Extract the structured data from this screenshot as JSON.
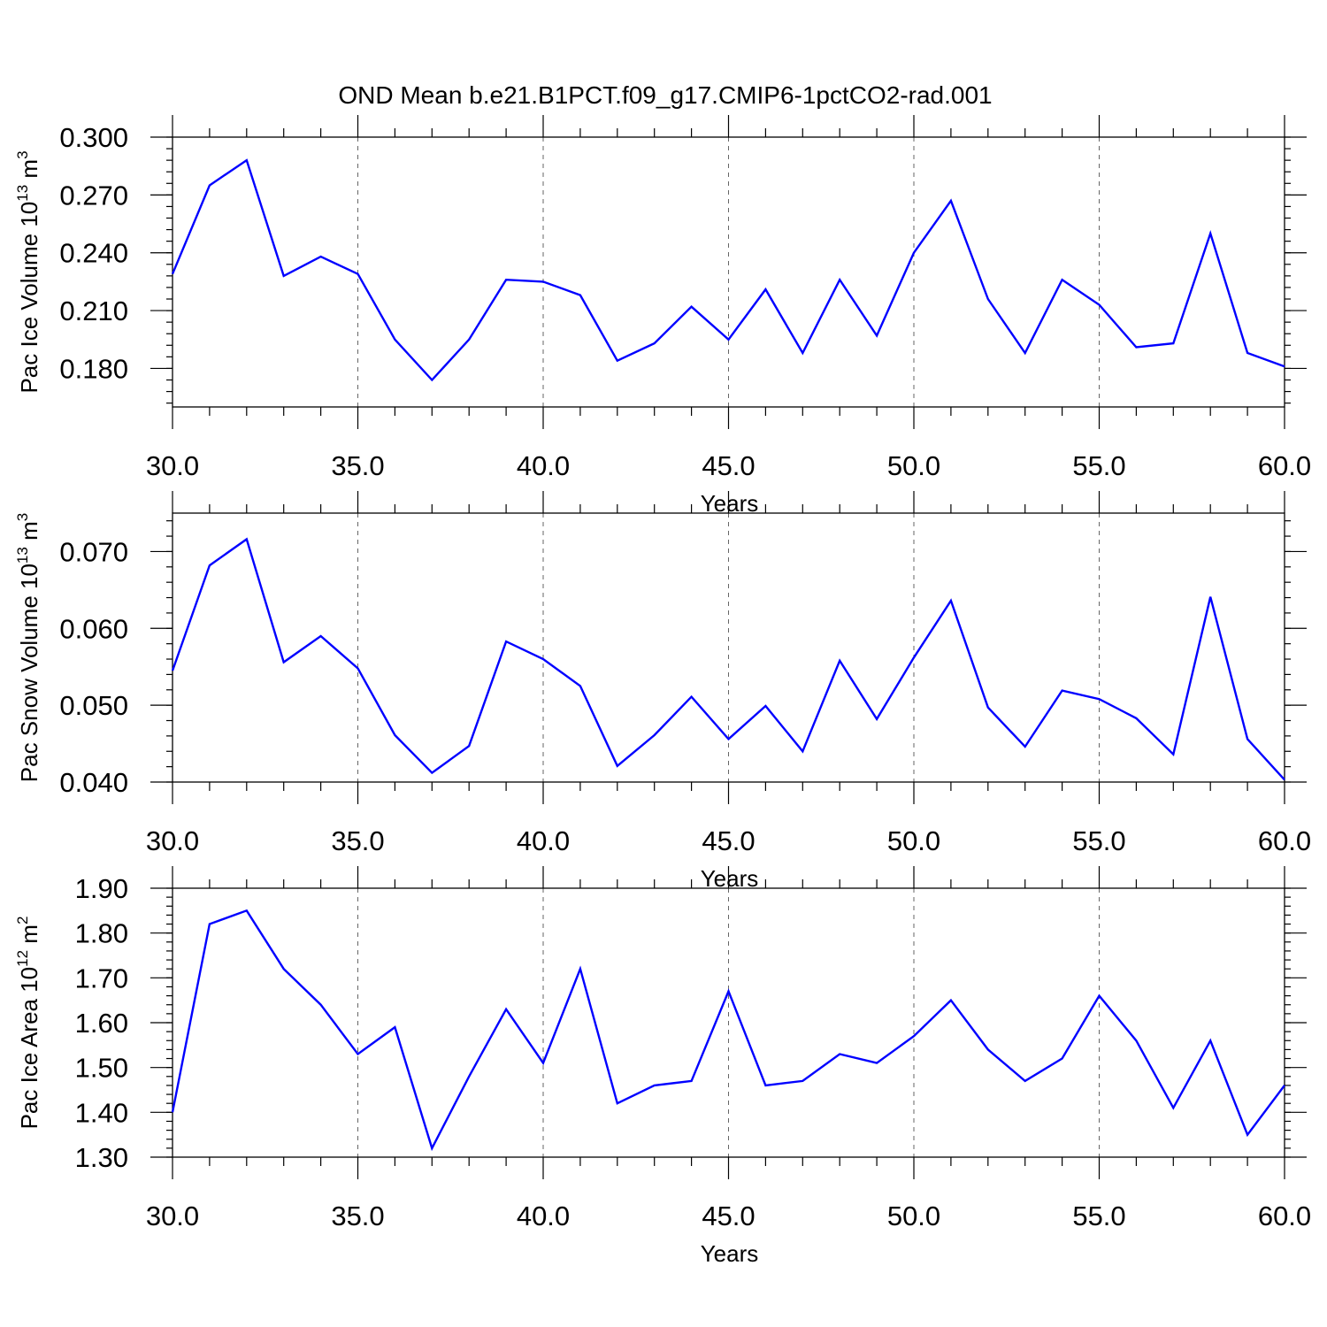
{
  "title": "OND Mean b.e21.B1PCT.f09_g17.CMIP6-1pctCO2-rad.001",
  "colors": {
    "series": "#0000ff",
    "grid": "#666666"
  },
  "chart_data": [
    {
      "type": "line",
      "xlabel": "Years",
      "ylabel": "Pac Ice Volume 10",
      "ylabel_exp": "13",
      "ylabel_unit": " m",
      "ylabel_unit_exp": "3",
      "xlim": [
        30,
        60
      ],
      "ylim": [
        0.16,
        0.3
      ],
      "xticks": [
        30,
        35,
        40,
        45,
        50,
        55,
        60
      ],
      "xtick_labels": [
        "30.0",
        "35.0",
        "40.0",
        "45.0",
        "50.0",
        "55.0",
        "60.0"
      ],
      "yticks": [
        0.18,
        0.21,
        0.24,
        0.27,
        0.3
      ],
      "ytick_labels": [
        "0.180",
        "0.210",
        "0.240",
        "0.270",
        "0.300"
      ],
      "yminor": 0.006,
      "grid": "dashed vertical at major x ticks",
      "x": [
        30,
        31,
        32,
        33,
        34,
        35,
        36,
        37,
        38,
        39,
        40,
        41,
        42,
        43,
        44,
        45,
        46,
        47,
        48,
        49,
        50,
        51,
        52,
        53,
        54,
        55,
        56,
        57,
        58,
        59,
        60
      ],
      "values": [
        0.229,
        0.275,
        0.288,
        0.228,
        0.238,
        0.229,
        0.195,
        0.174,
        0.195,
        0.226,
        0.225,
        0.218,
        0.184,
        0.193,
        0.212,
        0.195,
        0.221,
        0.188,
        0.226,
        0.197,
        0.24,
        0.267,
        0.216,
        0.188,
        0.226,
        0.213,
        0.191,
        0.193,
        0.25,
        0.188,
        0.181
      ]
    },
    {
      "type": "line",
      "xlabel": "Years",
      "ylabel": "Pac Snow Volume 10",
      "ylabel_exp": "13",
      "ylabel_unit": " m",
      "ylabel_unit_exp": "3",
      "xlim": [
        30,
        60
      ],
      "ylim": [
        0.04,
        0.075
      ],
      "xticks": [
        30,
        35,
        40,
        45,
        50,
        55,
        60
      ],
      "xtick_labels": [
        "30.0",
        "35.0",
        "40.0",
        "45.0",
        "50.0",
        "55.0",
        "60.0"
      ],
      "yticks": [
        0.04,
        0.05,
        0.06,
        0.07
      ],
      "ytick_labels": [
        "0.040",
        "0.050",
        "0.060",
        "0.070"
      ],
      "yminor": 0.002,
      "grid": "dashed vertical at major x ticks",
      "x": [
        30,
        31,
        32,
        33,
        34,
        35,
        36,
        37,
        38,
        39,
        40,
        41,
        42,
        43,
        44,
        45,
        46,
        47,
        48,
        49,
        50,
        51,
        52,
        53,
        54,
        55,
        56,
        57,
        58,
        59,
        60
      ],
      "values": [
        0.0545,
        0.0682,
        0.0716,
        0.0556,
        0.059,
        0.0548,
        0.0461,
        0.0412,
        0.0447,
        0.0583,
        0.056,
        0.0525,
        0.0421,
        0.0461,
        0.0511,
        0.0456,
        0.0499,
        0.044,
        0.0558,
        0.0482,
        0.0562,
        0.0636,
        0.0497,
        0.0446,
        0.0519,
        0.0508,
        0.0483,
        0.0436,
        0.0641,
        0.0456,
        0.0403
      ]
    },
    {
      "type": "line",
      "xlabel": "Years",
      "ylabel": "Pac Ice Area 10",
      "ylabel_exp": "12",
      "ylabel_unit": " m",
      "ylabel_unit_exp": "2",
      "xlim": [
        30,
        60
      ],
      "ylim": [
        1.3,
        1.9
      ],
      "xticks": [
        30,
        35,
        40,
        45,
        50,
        55,
        60
      ],
      "xtick_labels": [
        "30.0",
        "35.0",
        "40.0",
        "45.0",
        "50.0",
        "55.0",
        "60.0"
      ],
      "yticks": [
        1.3,
        1.4,
        1.5,
        1.6,
        1.7,
        1.8,
        1.9
      ],
      "ytick_labels": [
        "1.30",
        "1.40",
        "1.50",
        "1.60",
        "1.70",
        "1.80",
        "1.90"
      ],
      "yminor": 0.02,
      "grid": "dashed vertical at major x ticks",
      "x": [
        30,
        31,
        32,
        33,
        34,
        35,
        36,
        37,
        38,
        39,
        40,
        41,
        42,
        43,
        44,
        45,
        46,
        47,
        48,
        49,
        50,
        51,
        52,
        53,
        54,
        55,
        56,
        57,
        58,
        59,
        60
      ],
      "values": [
        1.4,
        1.82,
        1.85,
        1.72,
        1.64,
        1.53,
        1.59,
        1.32,
        1.48,
        1.63,
        1.51,
        1.72,
        1.42,
        1.46,
        1.47,
        1.67,
        1.46,
        1.47,
        1.53,
        1.51,
        1.57,
        1.65,
        1.54,
        1.47,
        1.52,
        1.66,
        1.56,
        1.41,
        1.56,
        1.35,
        1.46
      ]
    }
  ]
}
